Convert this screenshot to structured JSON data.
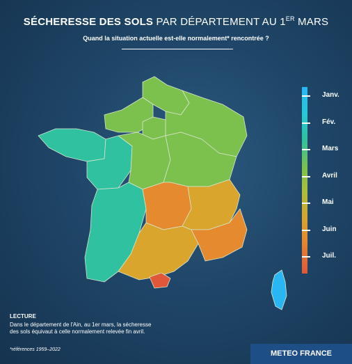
{
  "title": {
    "bold": "SÉCHERESSE DES SOLS",
    "rest": " PAR DÉPARTEMENT AU 1",
    "sup": "ER",
    "end": " MARS"
  },
  "subtitle": "Quand la situation actuelle est-elle normalement* rencontrée ?",
  "scale": {
    "labels": [
      "Janv.",
      "Fév.",
      "Mars",
      "Avril",
      "Mai",
      "Juin",
      "Juil."
    ]
  },
  "legend": {
    "title": "LECTURE",
    "line1": "Dans le département de l'Ain, au 1er mars, la sécheresse",
    "line2": "des sols équivaut à celle normalement relevée fin avril."
  },
  "footnote": "*références 1959–2022",
  "brand": "METEO FRANCE",
  "colors": {
    "background": "#1d3e5c",
    "jan": "#29b6f2",
    "feb": "#27c8d8",
    "mar": "#2fc1a0",
    "apr": "#7cc04e",
    "may": "#d9a52c",
    "jun": "#e58a2e",
    "jul": "#e0573a",
    "brand": "#1d4f86"
  },
  "map": {
    "regions": [
      {
        "name": "region-nord",
        "level": "apr"
      },
      {
        "name": "region-normandie",
        "level": "apr"
      },
      {
        "name": "region-ile-de-france",
        "level": "apr"
      },
      {
        "name": "region-grand-est",
        "level": "apr"
      },
      {
        "name": "region-bretagne",
        "level": "mar"
      },
      {
        "name": "region-pays-de-la-loire",
        "level": "mar"
      },
      {
        "name": "region-centre",
        "level": "apr"
      },
      {
        "name": "region-bourgogne-franche-comte",
        "level": "apr"
      },
      {
        "name": "region-nouvelle-aquitaine",
        "level": "mar"
      },
      {
        "name": "region-auvergne",
        "level": "jun"
      },
      {
        "name": "region-rhone-alpes",
        "level": "may"
      },
      {
        "name": "region-occitanie",
        "level": "may"
      },
      {
        "name": "region-pyrenees-orientales",
        "level": "jul"
      },
      {
        "name": "region-provence",
        "level": "jun"
      },
      {
        "name": "region-corse",
        "level": "jan"
      }
    ]
  }
}
